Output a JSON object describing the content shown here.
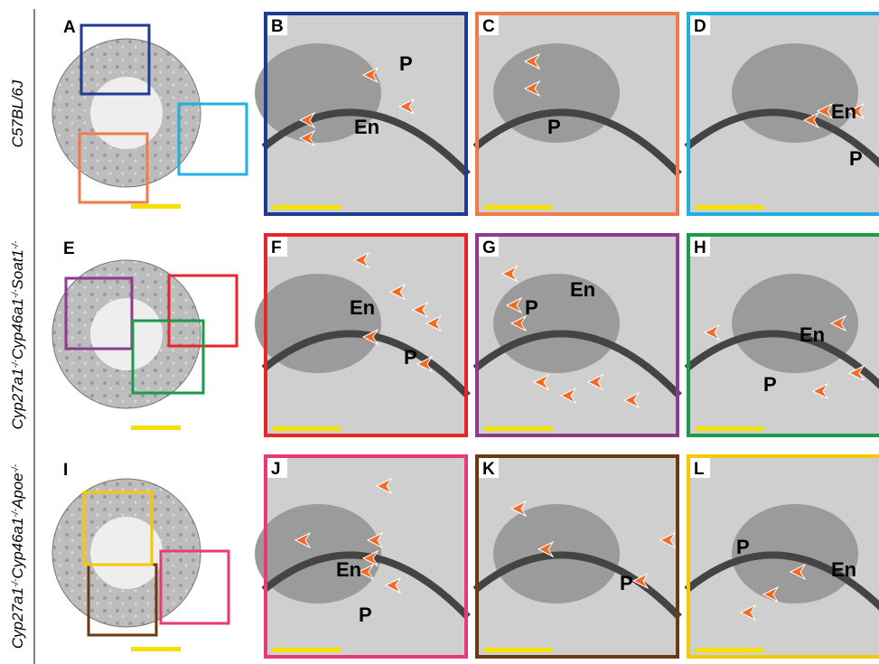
{
  "rows": [
    {
      "label": [
        "C57BL/6J"
      ],
      "overview": {
        "letter": "A"
      },
      "panels": [
        {
          "letter": "B",
          "labels": [
            "P",
            "En"
          ]
        },
        {
          "letter": "C",
          "labels": [
            "P"
          ]
        },
        {
          "letter": "D",
          "labels": [
            "En",
            "P"
          ]
        }
      ]
    },
    {
      "label": [
        "Cyp27a1",
        "-/-",
        "Cyp46a1",
        "-/-",
        "Soat1",
        "-/-"
      ],
      "overview": {
        "letter": "E"
      },
      "panels": [
        {
          "letter": "F",
          "labels": [
            "En",
            "P"
          ]
        },
        {
          "letter": "G",
          "labels": [
            "P",
            "En"
          ]
        },
        {
          "letter": "H",
          "labels": [
            "En",
            "P"
          ]
        }
      ]
    },
    {
      "label": [
        "Cyp27a1",
        "-/-",
        "Cyp46a1",
        "-/-",
        "Apoe",
        "-/-"
      ],
      "overview": {
        "letter": "I"
      },
      "panels": [
        {
          "letter": "J",
          "labels": [
            "En",
            "P"
          ]
        },
        {
          "letter": "K",
          "labels": [
            "P"
          ]
        },
        {
          "letter": "L",
          "labels": [
            "P",
            "En"
          ]
        }
      ]
    }
  ]
}
